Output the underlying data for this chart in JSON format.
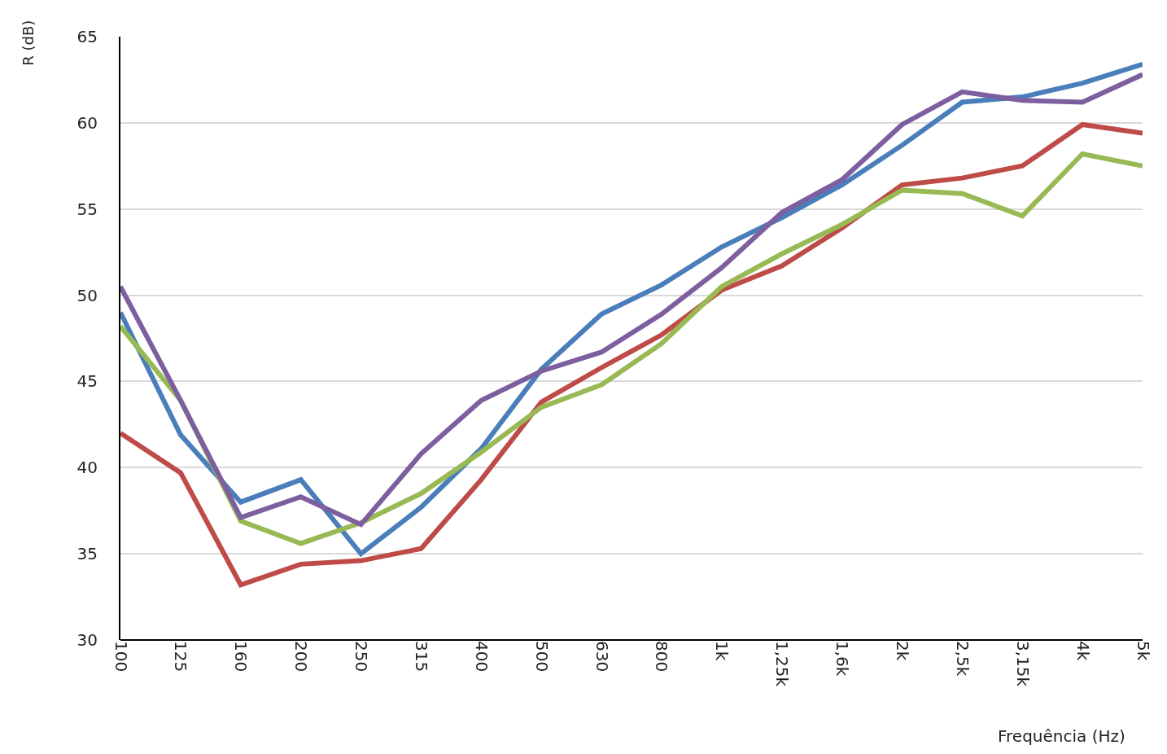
{
  "chart_data": {
    "type": "line",
    "xlabel": "Frequência (Hz)",
    "ylabel": "R (dB)",
    "categories": [
      "100",
      "125",
      "160",
      "200",
      "250",
      "315",
      "400",
      "500",
      "630",
      "800",
      "1k",
      "1,25k",
      "1,6k",
      "2k",
      "2,5k",
      "3,15k",
      "4k",
      "5k"
    ],
    "series": [
      {
        "color": "#4a7ebb",
        "values": [
          49.0,
          41.9,
          38.0,
          39.3,
          35.0,
          37.7,
          41.1,
          45.7,
          48.9,
          50.6,
          52.8,
          54.5,
          56.4,
          58.7,
          61.2,
          61.5,
          62.3,
          63.4
        ]
      },
      {
        "color": "#be4b48",
        "values": [
          42.0,
          39.7,
          33.2,
          34.4,
          34.6,
          35.3,
          39.3,
          43.8,
          45.8,
          47.7,
          50.3,
          51.7,
          53.9,
          56.4,
          56.8,
          57.5,
          59.9,
          59.4
        ]
      },
      {
        "color": "#98b954",
        "values": [
          48.2,
          43.9,
          36.9,
          35.6,
          36.8,
          38.5,
          40.9,
          43.5,
          44.8,
          47.2,
          50.5,
          52.4,
          54.1,
          56.1,
          55.9,
          54.6,
          58.2,
          57.5
        ]
      },
      {
        "color": "#7d5fa0",
        "values": [
          50.5,
          43.9,
          37.1,
          38.3,
          36.7,
          40.8,
          43.9,
          45.6,
          46.7,
          48.9,
          51.6,
          54.8,
          56.7,
          59.9,
          61.8,
          61.3,
          61.2,
          62.8
        ]
      }
    ],
    "ylim": [
      30,
      65
    ],
    "yticks": [
      30,
      35,
      40,
      45,
      50,
      55,
      60,
      65
    ],
    "grid": "y",
    "marker": "none",
    "line_style": "solid"
  }
}
